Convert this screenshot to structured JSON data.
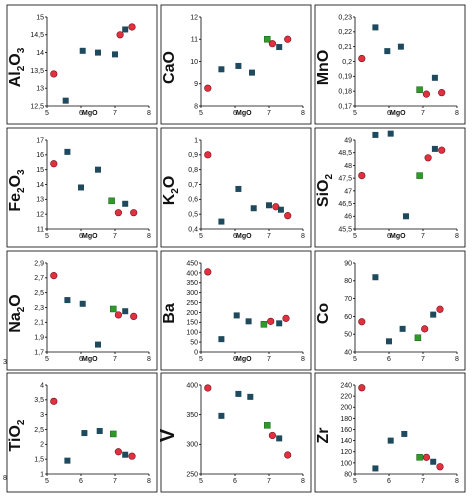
{
  "colors": {
    "circle_fill": "#e0313f",
    "circle_stroke": "#7a1020",
    "square_fill": "#1f4a5e",
    "highlight_fill": "#2f9a2a",
    "frame": "#000000"
  },
  "row_markers": [
    "3",
    "8"
  ],
  "chart_data": [
    {
      "type": "scatter",
      "element": "Al",
      "sub": "2",
      "tail": "O",
      "sub2": "3",
      "xlabel": "MgO",
      "xlim": [
        5,
        8
      ],
      "xticks": [
        "5",
        "6",
        "7",
        "8"
      ],
      "ylim": [
        12.5,
        15
      ],
      "yticks": [
        "12,5",
        "13",
        "13,5",
        "14",
        "14,5",
        "15"
      ],
      "points": [
        {
          "x": 5.2,
          "y": 13.4,
          "marker": "circle"
        },
        {
          "x": 5.55,
          "y": 12.65,
          "marker": "square"
        },
        {
          "x": 6.05,
          "y": 14.05,
          "marker": "square"
        },
        {
          "x": 6.5,
          "y": 14.0,
          "marker": "square"
        },
        {
          "x": 7.0,
          "y": 13.95,
          "marker": "square"
        },
        {
          "x": 7.15,
          "y": 14.5,
          "marker": "circle"
        },
        {
          "x": 7.3,
          "y": 14.65,
          "marker": "square"
        },
        {
          "x": 7.5,
          "y": 14.72,
          "marker": "circle"
        }
      ]
    },
    {
      "type": "scatter",
      "element": "CaO",
      "sub": "",
      "tail": "",
      "sub2": "",
      "xlabel": "MgO",
      "xlim": [
        5,
        8
      ],
      "xticks": [
        "5",
        "6",
        "7",
        "8"
      ],
      "ylim": [
        8,
        12
      ],
      "yticks": [
        "8",
        "9",
        "10",
        "11",
        "12"
      ],
      "points": [
        {
          "x": 5.2,
          "y": 8.8,
          "marker": "circle"
        },
        {
          "x": 5.6,
          "y": 9.65,
          "marker": "square"
        },
        {
          "x": 6.1,
          "y": 9.8,
          "marker": "square"
        },
        {
          "x": 6.5,
          "y": 9.5,
          "marker": "square"
        },
        {
          "x": 6.95,
          "y": 11.0,
          "marker": "highlight"
        },
        {
          "x": 7.1,
          "y": 10.8,
          "marker": "circle"
        },
        {
          "x": 7.3,
          "y": 10.65,
          "marker": "square"
        },
        {
          "x": 7.55,
          "y": 11.0,
          "marker": "circle"
        }
      ]
    },
    {
      "type": "scatter",
      "element": "MnO",
      "sub": "",
      "tail": "",
      "sub2": "",
      "xlabel": "MgO",
      "xlim": [
        5,
        8
      ],
      "xticks": [
        "5",
        "6",
        "7",
        "8"
      ],
      "ylim": [
        0.17,
        0.23
      ],
      "yticks": [
        "0,17",
        "0,18",
        "0,19",
        "0,2",
        "0,21",
        "0,22",
        "0,23"
      ],
      "points": [
        {
          "x": 5.2,
          "y": 0.202,
          "marker": "circle"
        },
        {
          "x": 5.6,
          "y": 0.223,
          "marker": "square"
        },
        {
          "x": 5.95,
          "y": 0.207,
          "marker": "square"
        },
        {
          "x": 6.35,
          "y": 0.21,
          "marker": "square"
        },
        {
          "x": 6.9,
          "y": 0.181,
          "marker": "highlight"
        },
        {
          "x": 7.1,
          "y": 0.178,
          "marker": "circle"
        },
        {
          "x": 7.35,
          "y": 0.189,
          "marker": "square"
        },
        {
          "x": 7.55,
          "y": 0.179,
          "marker": "circle"
        }
      ]
    },
    {
      "type": "scatter",
      "element": "Fe",
      "sub": "2",
      "tail": "O",
      "sub2": "3",
      "xlabel": "MgO",
      "xlim": [
        5,
        8
      ],
      "xticks": [
        "5",
        "6",
        "7",
        "8"
      ],
      "ylim": [
        11,
        17
      ],
      "yticks": [
        "11",
        "12",
        "13",
        "14",
        "15",
        "16",
        "17"
      ],
      "points": [
        {
          "x": 5.2,
          "y": 15.4,
          "marker": "circle"
        },
        {
          "x": 5.6,
          "y": 16.2,
          "marker": "square"
        },
        {
          "x": 6.0,
          "y": 13.8,
          "marker": "square"
        },
        {
          "x": 6.5,
          "y": 15.0,
          "marker": "square"
        },
        {
          "x": 6.9,
          "y": 12.9,
          "marker": "highlight"
        },
        {
          "x": 7.1,
          "y": 12.1,
          "marker": "circle"
        },
        {
          "x": 7.3,
          "y": 12.7,
          "marker": "square"
        },
        {
          "x": 7.55,
          "y": 12.1,
          "marker": "circle"
        }
      ]
    },
    {
      "type": "scatter",
      "element": "K",
      "sub": "2",
      "tail": "O",
      "sub2": "",
      "xlabel": "MgO",
      "xlim": [
        5,
        8
      ],
      "xticks": [
        "5",
        "6",
        "7",
        "8"
      ],
      "ylim": [
        0.4,
        1.0
      ],
      "yticks": [
        "0,4",
        "0,5",
        "0,6",
        "0,7",
        "0,8",
        "0,9",
        "1"
      ],
      "points": [
        {
          "x": 5.2,
          "y": 0.9,
          "marker": "circle"
        },
        {
          "x": 5.6,
          "y": 0.45,
          "marker": "square"
        },
        {
          "x": 6.1,
          "y": 0.67,
          "marker": "square"
        },
        {
          "x": 6.55,
          "y": 0.54,
          "marker": "square"
        },
        {
          "x": 7.0,
          "y": 0.56,
          "marker": "square"
        },
        {
          "x": 7.2,
          "y": 0.55,
          "marker": "circle"
        },
        {
          "x": 7.35,
          "y": 0.53,
          "marker": "square"
        },
        {
          "x": 7.55,
          "y": 0.49,
          "marker": "circle"
        }
      ]
    },
    {
      "type": "scatter",
      "element": "SiO",
      "sub": "2",
      "tail": "",
      "sub2": "",
      "xlabel": "MgO",
      "xlim": [
        5,
        8
      ],
      "xticks": [
        "5",
        "6",
        "7",
        "8"
      ],
      "ylim": [
        45.5,
        49
      ],
      "yticks": [
        "45,5",
        "46",
        "46,5",
        "47",
        "47,5",
        "48",
        "48,5",
        "49"
      ],
      "points": [
        {
          "x": 5.2,
          "y": 47.6,
          "marker": "circle"
        },
        {
          "x": 5.6,
          "y": 49.2,
          "marker": "square"
        },
        {
          "x": 6.05,
          "y": 49.25,
          "marker": "square"
        },
        {
          "x": 6.5,
          "y": 46.0,
          "marker": "square"
        },
        {
          "x": 6.9,
          "y": 47.6,
          "marker": "highlight"
        },
        {
          "x": 7.15,
          "y": 48.3,
          "marker": "circle"
        },
        {
          "x": 7.35,
          "y": 48.65,
          "marker": "square"
        },
        {
          "x": 7.55,
          "y": 48.6,
          "marker": "circle"
        }
      ]
    },
    {
      "type": "scatter",
      "element": "Na",
      "sub": "2",
      "tail": "O",
      "sub2": "",
      "xlabel": "MgO",
      "xlim": [
        5,
        8
      ],
      "xticks": [
        "5",
        "6",
        "7",
        "8"
      ],
      "ylim": [
        1.7,
        2.9
      ],
      "yticks": [
        "1,7",
        "1,9",
        "2,1",
        "2,3",
        "2,5",
        "2,7",
        "2,9"
      ],
      "points": [
        {
          "x": 5.2,
          "y": 2.73,
          "marker": "circle"
        },
        {
          "x": 5.6,
          "y": 2.4,
          "marker": "square"
        },
        {
          "x": 6.05,
          "y": 2.35,
          "marker": "square"
        },
        {
          "x": 6.5,
          "y": 1.8,
          "marker": "square"
        },
        {
          "x": 6.95,
          "y": 2.28,
          "marker": "highlight"
        },
        {
          "x": 7.1,
          "y": 2.2,
          "marker": "circle"
        },
        {
          "x": 7.3,
          "y": 2.25,
          "marker": "square"
        },
        {
          "x": 7.55,
          "y": 2.18,
          "marker": "circle"
        }
      ]
    },
    {
      "type": "scatter",
      "element": "Ba",
      "sub": "",
      "tail": "",
      "sub2": "",
      "xlabel": "MgO",
      "xlim": [
        5,
        8
      ],
      "xticks": [
        "5",
        "6",
        "7",
        "8"
      ],
      "ylim": [
        0,
        450
      ],
      "yticks": [
        "0",
        "50",
        "100",
        "150",
        "200",
        "250",
        "300",
        "350",
        "400",
        "450"
      ],
      "points": [
        {
          "x": 5.2,
          "y": 405,
          "marker": "circle"
        },
        {
          "x": 5.6,
          "y": 65,
          "marker": "square"
        },
        {
          "x": 6.05,
          "y": 185,
          "marker": "square"
        },
        {
          "x": 6.4,
          "y": 155,
          "marker": "square"
        },
        {
          "x": 6.85,
          "y": 140,
          "marker": "highlight"
        },
        {
          "x": 7.05,
          "y": 155,
          "marker": "circle"
        },
        {
          "x": 7.3,
          "y": 145,
          "marker": "square"
        },
        {
          "x": 7.5,
          "y": 170,
          "marker": "circle"
        }
      ]
    },
    {
      "type": "scatter",
      "element": "Co",
      "sub": "",
      "tail": "",
      "sub2": "",
      "xlabel": "",
      "xlim": [
        5,
        8
      ],
      "xticks": [
        "5",
        "6",
        "7",
        "8"
      ],
      "ylim": [
        40,
        90
      ],
      "yticks": [
        "40",
        "50",
        "60",
        "70",
        "80",
        "90"
      ],
      "points": [
        {
          "x": 5.2,
          "y": 57,
          "marker": "circle"
        },
        {
          "x": 5.6,
          "y": 82,
          "marker": "square"
        },
        {
          "x": 6.0,
          "y": 46,
          "marker": "square"
        },
        {
          "x": 6.4,
          "y": 53,
          "marker": "square"
        },
        {
          "x": 6.85,
          "y": 48,
          "marker": "highlight"
        },
        {
          "x": 7.05,
          "y": 53,
          "marker": "circle"
        },
        {
          "x": 7.3,
          "y": 61,
          "marker": "square"
        },
        {
          "x": 7.5,
          "y": 64,
          "marker": "circle"
        }
      ]
    },
    {
      "type": "scatter",
      "element": "TiO",
      "sub": "2",
      "tail": "",
      "sub2": "",
      "xlabel": "",
      "xlim": [
        5,
        8
      ],
      "xticks": [
        "5",
        "6",
        "7",
        "8"
      ],
      "ylim": [
        1,
        4
      ],
      "yticks": [
        "1",
        "1,5",
        "2",
        "2,5",
        "3",
        "3,5",
        "4"
      ],
      "points": [
        {
          "x": 5.2,
          "y": 3.45,
          "marker": "circle"
        },
        {
          "x": 5.6,
          "y": 1.45,
          "marker": "square"
        },
        {
          "x": 6.1,
          "y": 2.38,
          "marker": "square"
        },
        {
          "x": 6.55,
          "y": 2.45,
          "marker": "square"
        },
        {
          "x": 6.95,
          "y": 2.35,
          "marker": "highlight"
        },
        {
          "x": 7.1,
          "y": 1.75,
          "marker": "circle"
        },
        {
          "x": 7.3,
          "y": 1.65,
          "marker": "square"
        },
        {
          "x": 7.5,
          "y": 1.6,
          "marker": "circle"
        }
      ]
    },
    {
      "type": "scatter",
      "element": "V",
      "sub": "",
      "tail": "",
      "sub2": "",
      "xlabel": "",
      "xlim": [
        5,
        8
      ],
      "xticks": [
        "5",
        "6",
        "7",
        "8"
      ],
      "ylim": [
        250,
        400
      ],
      "yticks": [
        "250",
        "300",
        "350",
        "400"
      ],
      "points": [
        {
          "x": 5.2,
          "y": 395,
          "marker": "circle"
        },
        {
          "x": 5.6,
          "y": 348,
          "marker": "square"
        },
        {
          "x": 6.1,
          "y": 385,
          "marker": "square"
        },
        {
          "x": 6.45,
          "y": 380,
          "marker": "square"
        },
        {
          "x": 6.95,
          "y": 332,
          "marker": "highlight"
        },
        {
          "x": 7.1,
          "y": 315,
          "marker": "circle"
        },
        {
          "x": 7.3,
          "y": 310,
          "marker": "square"
        },
        {
          "x": 7.55,
          "y": 282,
          "marker": "circle"
        }
      ]
    },
    {
      "type": "scatter",
      "element": "Zr",
      "sub": "",
      "tail": "",
      "sub2": "",
      "xlabel": "",
      "xlim": [
        5,
        8
      ],
      "xticks": [
        "5",
        "6",
        "7",
        "8"
      ],
      "ylim": [
        80,
        240
      ],
      "yticks": [
        "80",
        "100",
        "120",
        "140",
        "160",
        "180",
        "200",
        "220",
        "240"
      ],
      "points": [
        {
          "x": 5.2,
          "y": 235,
          "marker": "circle"
        },
        {
          "x": 5.6,
          "y": 90,
          "marker": "square"
        },
        {
          "x": 6.05,
          "y": 140,
          "marker": "square"
        },
        {
          "x": 6.45,
          "y": 152,
          "marker": "square"
        },
        {
          "x": 6.9,
          "y": 110,
          "marker": "highlight"
        },
        {
          "x": 7.1,
          "y": 110,
          "marker": "circle"
        },
        {
          "x": 7.3,
          "y": 102,
          "marker": "square"
        },
        {
          "x": 7.5,
          "y": 93,
          "marker": "circle"
        }
      ]
    }
  ]
}
